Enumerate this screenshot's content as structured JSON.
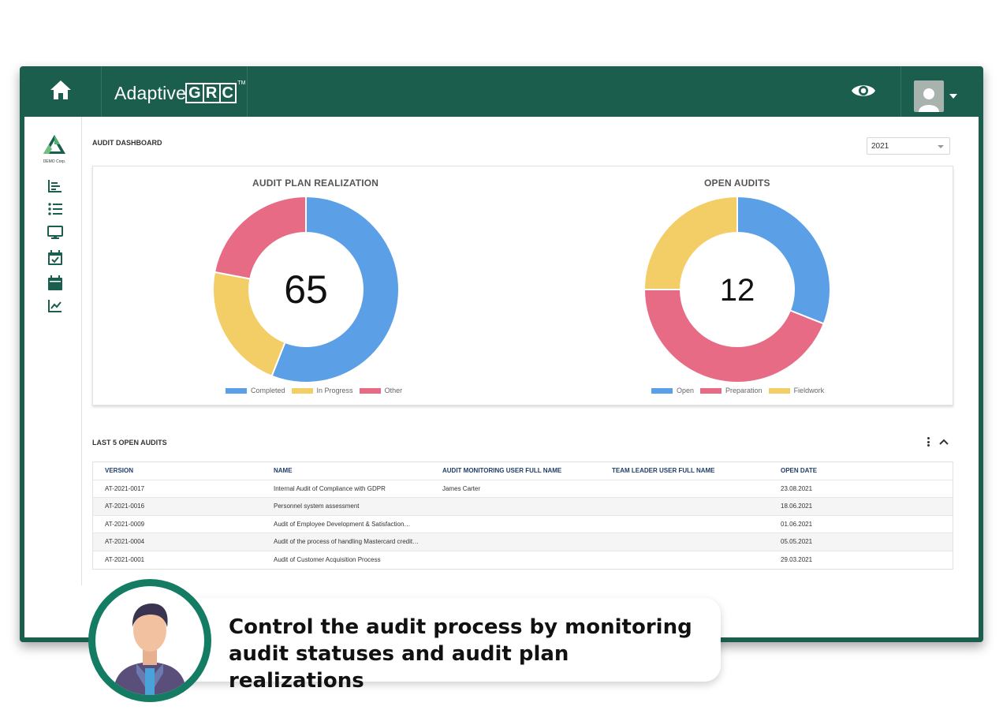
{
  "app": {
    "brand_name": "Adaptive",
    "brand_letters": [
      "G",
      "R",
      "C"
    ],
    "brand_tm": "TM",
    "org_name": "DEMO Corp.",
    "accent_color": "#1b5e4d"
  },
  "topbar": {
    "icons": [
      "home-icon",
      "eye-icon",
      "user-avatar-icon",
      "chevron-down-icon"
    ]
  },
  "sidebar": {
    "items": [
      {
        "icon": "bar-chart-icon"
      },
      {
        "icon": "list-icon"
      },
      {
        "icon": "monitor-icon"
      },
      {
        "icon": "calendar-check-icon"
      },
      {
        "icon": "calendar-icon"
      },
      {
        "icon": "line-chart-icon"
      }
    ]
  },
  "dashboard": {
    "title": "AUDIT DASHBOARD",
    "year": "2021"
  },
  "chart_data": [
    {
      "type": "pie",
      "title": "AUDIT PLAN REALIZATION",
      "center_value": "65",
      "categories": [
        "Completed",
        "In Progress",
        "Other"
      ],
      "values": [
        56,
        22,
        22
      ],
      "colors": [
        "#5ba0e6",
        "#f3cd65",
        "#e76b84"
      ]
    },
    {
      "type": "pie",
      "title": "OPEN AUDITS",
      "center_value": "12",
      "categories": [
        "Open",
        "Preparation",
        "Fieldwork"
      ],
      "values": [
        31,
        44,
        25
      ],
      "colors": [
        "#5ba0e6",
        "#e76b84",
        "#f3cd65"
      ]
    }
  ],
  "last_audits": {
    "title": "LAST 5 OPEN AUDITS",
    "columns": [
      "VERSION",
      "NAME",
      "AUDIT MONITORING USER FULL NAME",
      "TEAM LEADER USER FULL NAME",
      "OPEN DATE"
    ],
    "rows": [
      [
        "AT-2021-0017",
        "Internal Audit of Compliance with GDPR",
        "James Carter",
        "",
        "23.08.2021"
      ],
      [
        "AT-2021-0016",
        "Personnel system assessment",
        "",
        "",
        "18.06.2021"
      ],
      [
        "AT-2021-0009",
        "Audit of Employee Development & Satisfaction…",
        "",
        "",
        "01.06.2021"
      ],
      [
        "AT-2021-0004",
        "Audit of the process of handling Mastercard credit…",
        "",
        "",
        "05.05.2021"
      ],
      [
        "AT-2021-0001",
        "Audit of Customer Acquisition Process",
        "",
        "",
        "29.03.2021"
      ]
    ]
  },
  "promo": {
    "line1": "Control the audit process by monitoring",
    "line2": "audit statuses and audit plan realizations",
    "ring_color": "#137c63"
  }
}
